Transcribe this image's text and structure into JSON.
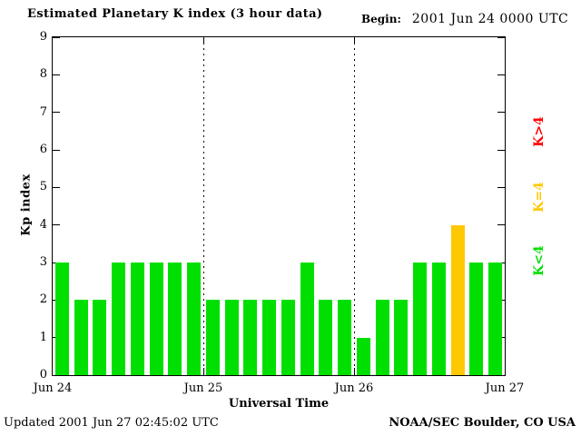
{
  "header": {
    "title": "Estimated Planetary K index (3 hour data)",
    "begin_label": "Begin:",
    "begin_value": "2001 Jun 24 0000 UTC"
  },
  "footer": {
    "updated": "Updated 2001 Jun 27 02:45:02 UTC",
    "source": "NOAA/SEC Boulder, CO USA"
  },
  "chart_data": {
    "type": "bar",
    "title": "Estimated Planetary K index (3 hour data)",
    "xlabel": "Universal Time",
    "ylabel": "Kp index",
    "ylim": [
      0,
      9
    ],
    "yticks": [
      0,
      1,
      2,
      3,
      4,
      5,
      6,
      7,
      8,
      9
    ],
    "xticks": [
      "Jun 24",
      "Jun 25",
      "Jun 26",
      "Jun 27"
    ],
    "interval_hours": 3,
    "values": [
      3,
      2,
      2,
      3,
      3,
      3,
      3,
      3,
      2,
      2,
      2,
      2,
      2,
      3,
      2,
      2,
      1,
      2,
      2,
      3,
      3,
      4,
      3,
      3
    ],
    "colors": {
      "below4": "#00df00",
      "equal4": "#ffc800",
      "above4": "#ff0000"
    },
    "legend": [
      {
        "label": "K>4",
        "color": "#ff0000"
      },
      {
        "label": "K=4",
        "color": "#ffc800"
      },
      {
        "label": "K<4",
        "color": "#00df00"
      }
    ],
    "grid": "dotted vertical lines at day boundaries",
    "legend_position": "right, rotated 90deg"
  }
}
